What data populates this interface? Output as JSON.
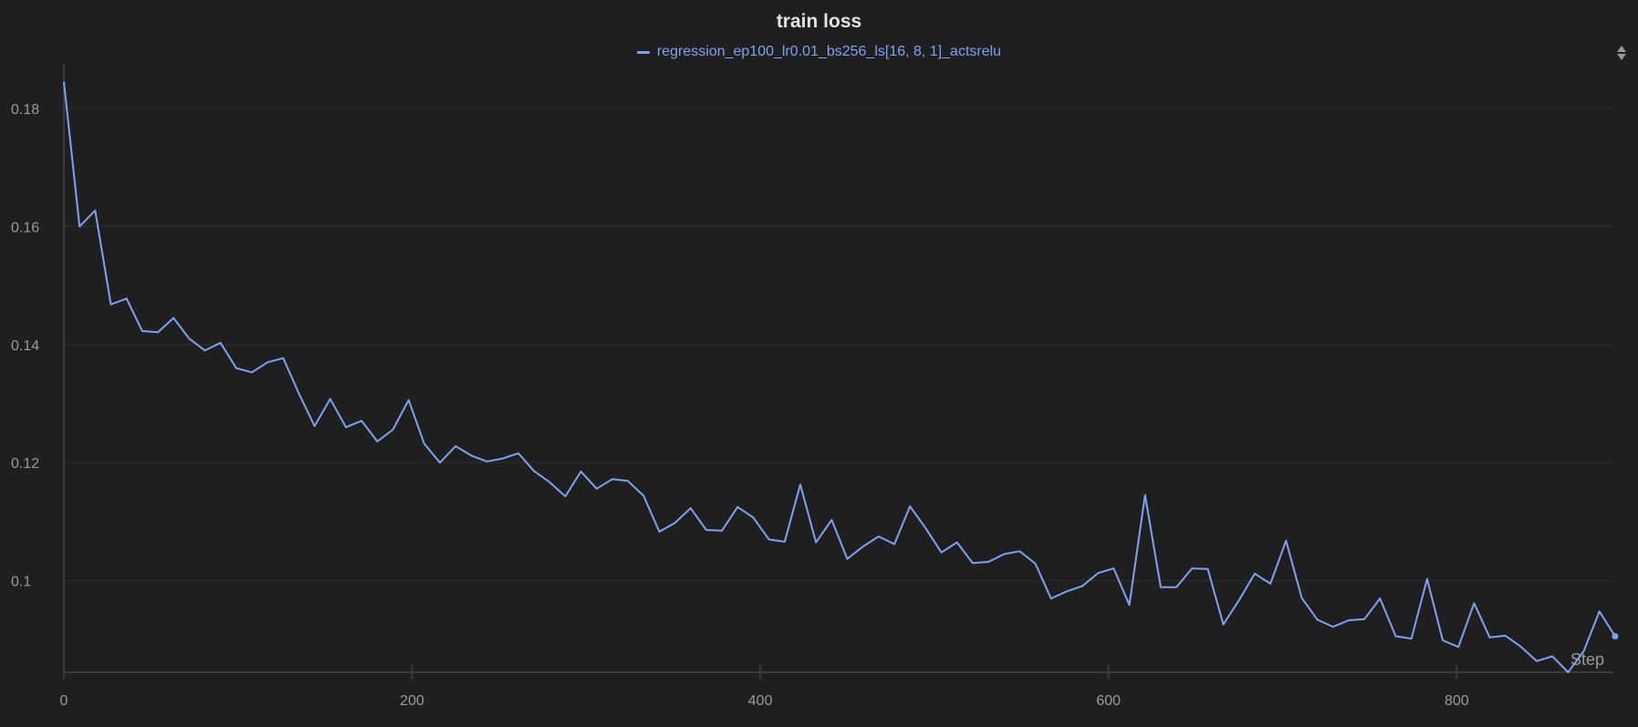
{
  "colors": {
    "background": "#1f1f1f",
    "series": "#7ea2f2",
    "grid": "#2f2f2f",
    "axis": "#3a3a3a",
    "text": "#9a9a9a",
    "title": "#e3e3e3"
  },
  "icons": {
    "sort": "sort-icon"
  },
  "chart_data": {
    "type": "line",
    "title": "train loss",
    "xlabel": "Step",
    "ylabel": "",
    "xlim": [
      0,
      890
    ],
    "ylim": [
      0.0845,
      0.186
    ],
    "grid": true,
    "legend_position": "top-center",
    "x_ticks": [
      0,
      200,
      400,
      600,
      800
    ],
    "x_tick_labels": [
      "0",
      "200",
      "400",
      "600",
      "800"
    ],
    "y_ticks": [
      0.1,
      0.12,
      0.14,
      0.16,
      0.18
    ],
    "y_tick_labels": [
      "0.1",
      "0.12",
      "0.14",
      "0.16",
      "0.18"
    ],
    "series": [
      {
        "name": "regression_ep100_lr0.01_bs256_ls[16, 8, 1]_actsrelu",
        "x": [
          0,
          9,
          18,
          27,
          36,
          45,
          54,
          63,
          72,
          81,
          90,
          99,
          108,
          117,
          126,
          135,
          144,
          153,
          162,
          171,
          180,
          189,
          198,
          207,
          216,
          225,
          234,
          243,
          252,
          261,
          270,
          279,
          288,
          297,
          306,
          315,
          324,
          333,
          342,
          351,
          360,
          369,
          378,
          387,
          396,
          405,
          414,
          423,
          432,
          441,
          450,
          459,
          468,
          477,
          486,
          495,
          504,
          513,
          522,
          531,
          540,
          549,
          558,
          567,
          576,
          585,
          594,
          603,
          612,
          621,
          630,
          639,
          648,
          657,
          666,
          675,
          684,
          693,
          702,
          711,
          720,
          729,
          738,
          747,
          756,
          765,
          774,
          783,
          792,
          801,
          810,
          819,
          828,
          837,
          846,
          855,
          864,
          873,
          882,
          891
        ],
        "y": [
          0.1845,
          0.16,
          0.1627,
          0.1468,
          0.1478,
          0.1423,
          0.1421,
          0.1445,
          0.141,
          0.139,
          0.1403,
          0.136,
          0.1353,
          0.137,
          0.1377,
          0.1317,
          0.1262,
          0.1308,
          0.126,
          0.1271,
          0.1236,
          0.1256,
          0.1306,
          0.1232,
          0.12,
          0.1228,
          0.1212,
          0.1202,
          0.1207,
          0.1216,
          0.1186,
          0.1167,
          0.1143,
          0.1185,
          0.1156,
          0.1172,
          0.1169,
          0.1144,
          0.1083,
          0.1098,
          0.1123,
          0.1086,
          0.1085,
          0.1125,
          0.1107,
          0.107,
          0.1066,
          0.1163,
          0.1065,
          0.1103,
          0.1037,
          0.1058,
          0.1075,
          0.1062,
          0.1126,
          0.1089,
          0.1048,
          0.1065,
          0.103,
          0.1032,
          0.1045,
          0.105,
          0.1029,
          0.097,
          0.0982,
          0.0991,
          0.1013,
          0.1021,
          0.0959,
          0.1145,
          0.0989,
          0.0989,
          0.1021,
          0.102,
          0.0926,
          0.0967,
          0.1012,
          0.0995,
          0.1068,
          0.0971,
          0.0934,
          0.0922,
          0.0933,
          0.0935,
          0.097,
          0.0906,
          0.0902,
          0.1003,
          0.0899,
          0.0888,
          0.0962,
          0.0904,
          0.0907,
          0.0888,
          0.0864,
          0.0872,
          0.0845,
          0.0881,
          0.0948,
          0.0906
        ]
      }
    ]
  }
}
